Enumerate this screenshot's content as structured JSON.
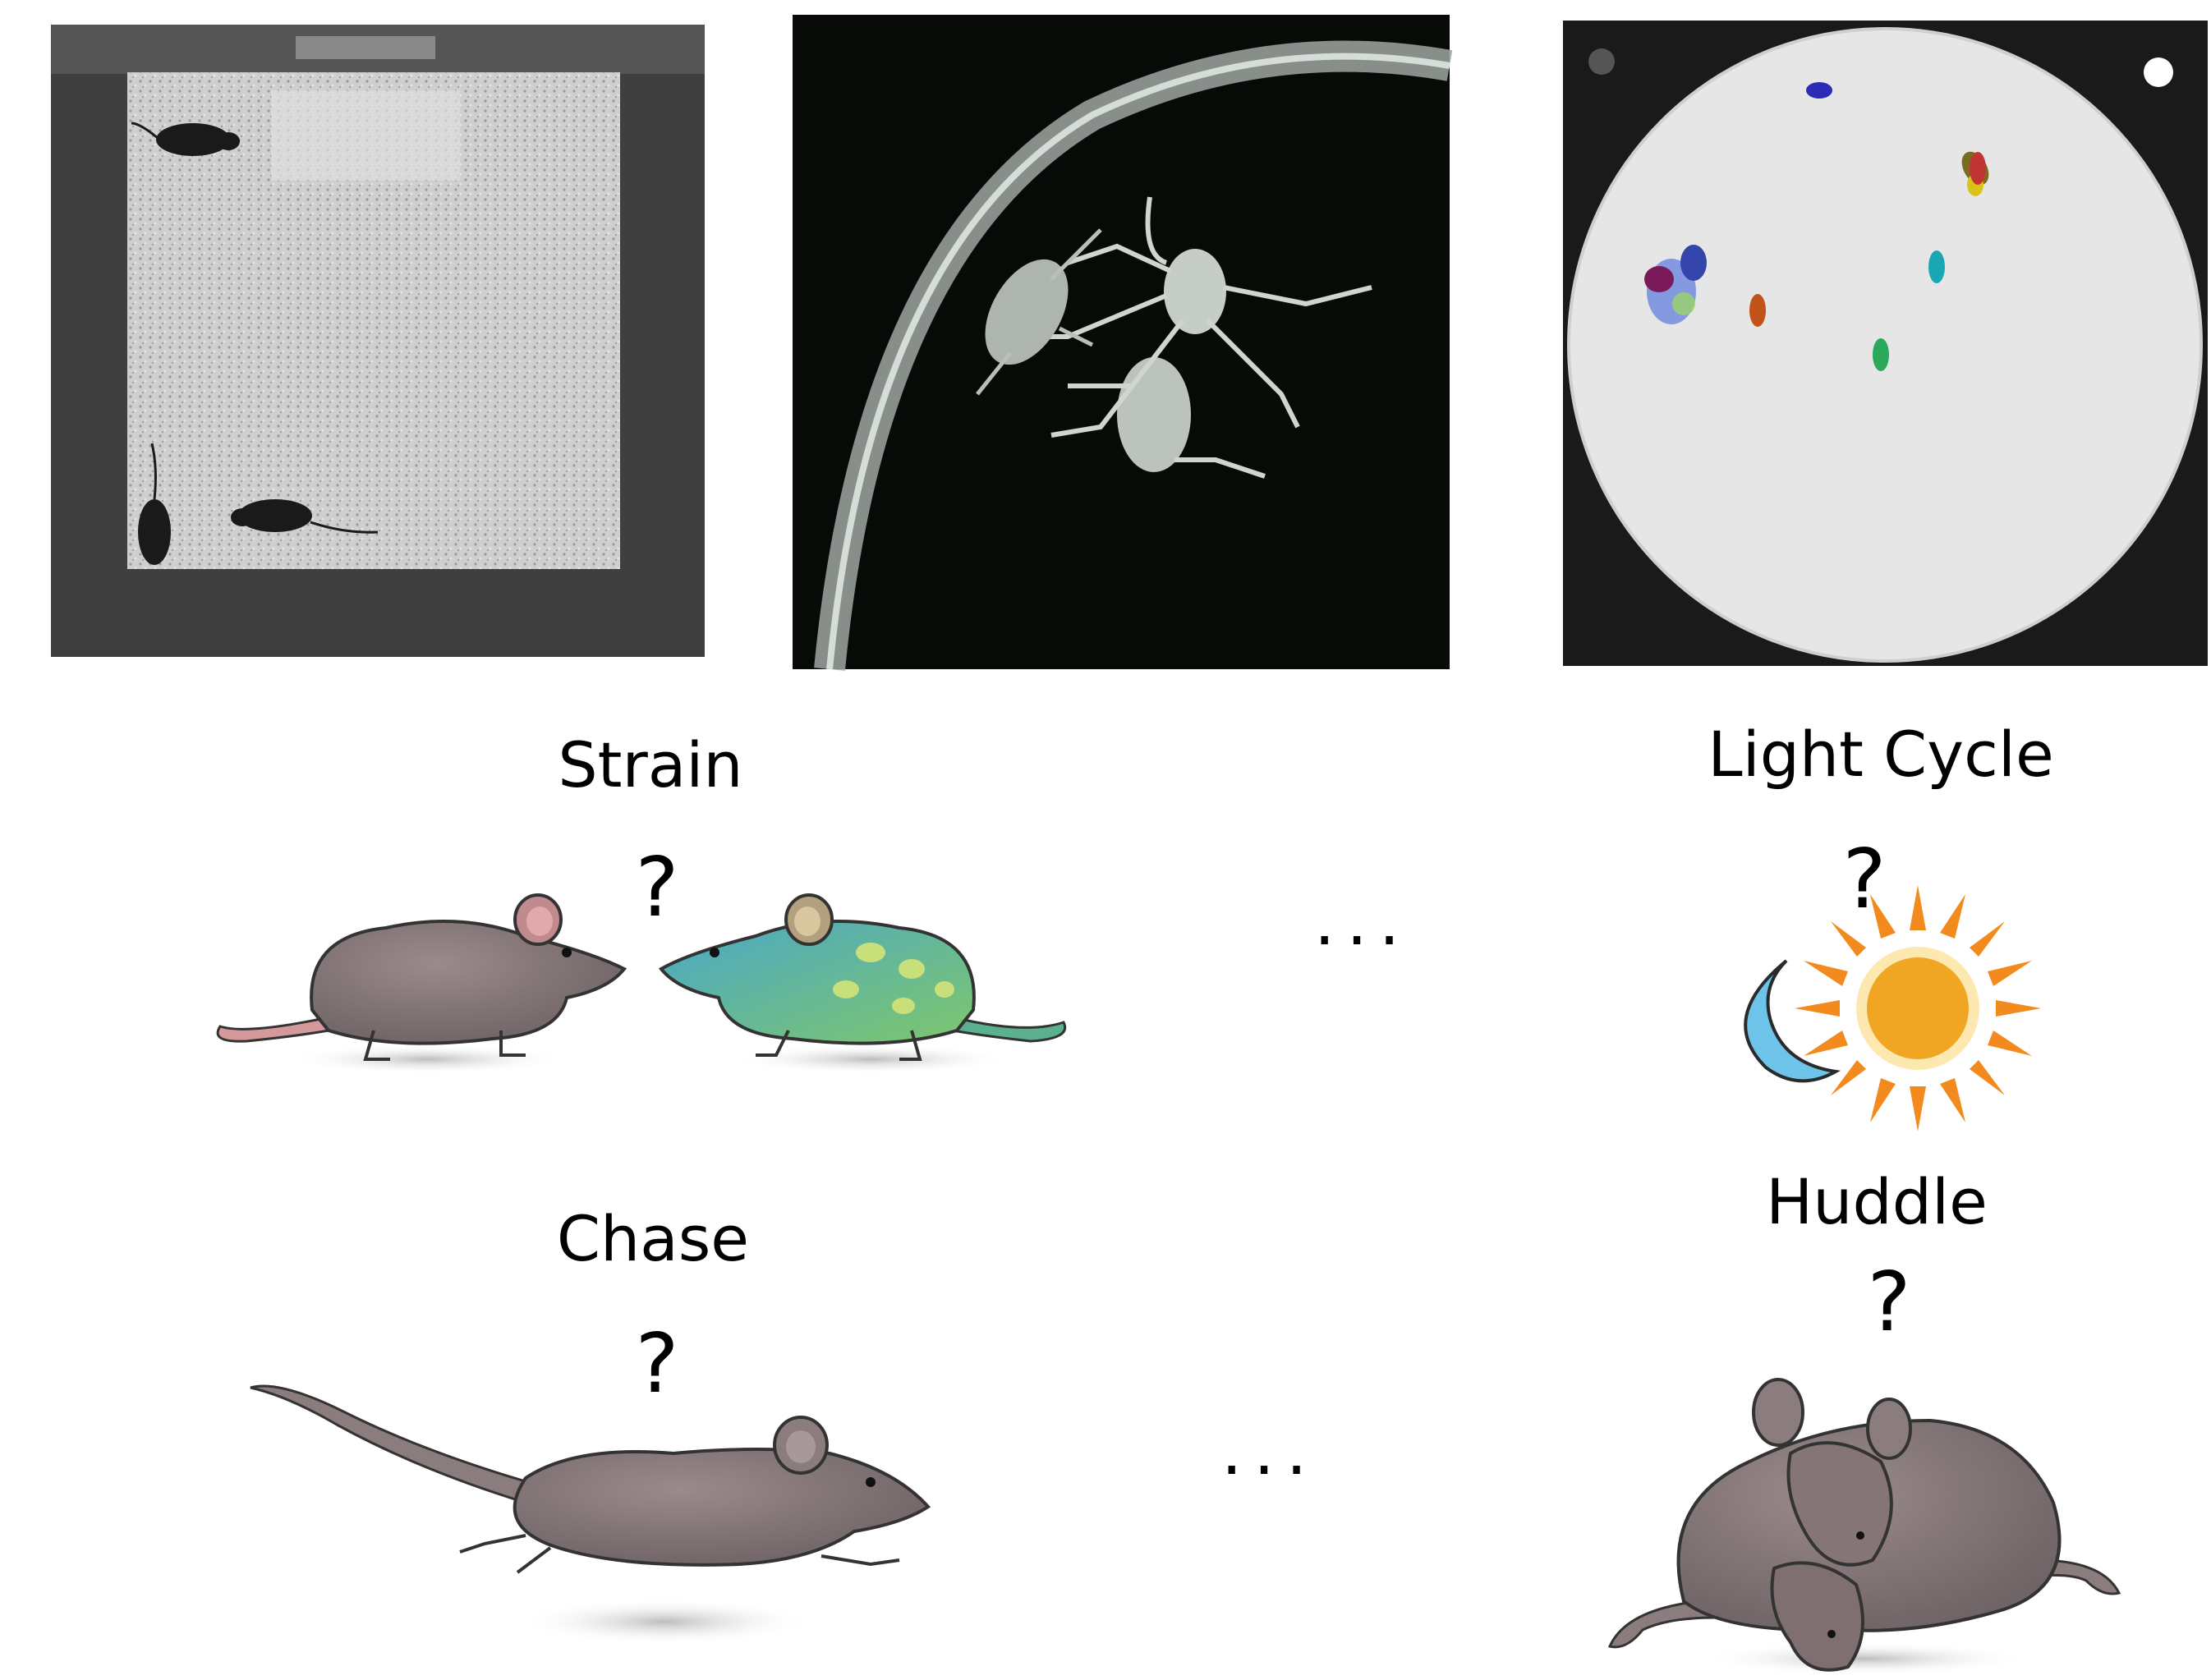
{
  "panels": {
    "mouse_arena": {
      "description_name": "mouse-arena-photo"
    },
    "spider_arena": {
      "description_name": "spider-arena-photo"
    },
    "fly_arena": {
      "description_name": "fly-arena-photo"
    }
  },
  "tasks": {
    "strain": {
      "label": "Strain",
      "question": "?"
    },
    "light_cycle": {
      "label": "Light Cycle",
      "question": "?"
    },
    "chase": {
      "label": "Chase",
      "question": "?"
    },
    "huddle": {
      "label": "Huddle",
      "question": "?"
    },
    "ellipsis_top": "...",
    "ellipsis_bottom": "..."
  },
  "colors": {
    "mouse_body": "#8a7a7c",
    "mouse_green": "#4fb39a",
    "mouse_spots": "#c9e07a",
    "moon": "#6ec3e8",
    "sun": "#f0a623",
    "sun_rays": "#f28a1e"
  }
}
